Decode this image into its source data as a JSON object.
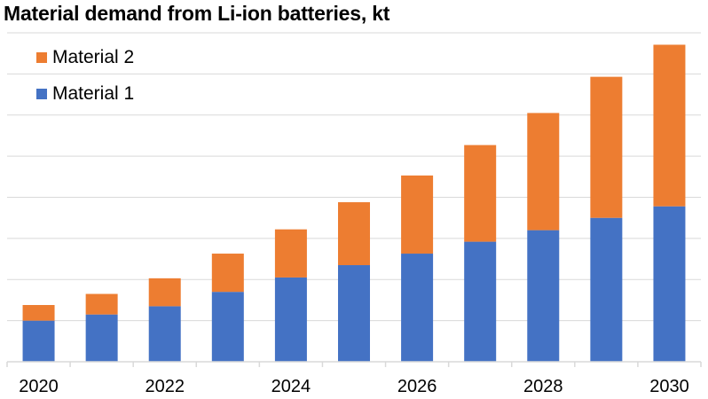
{
  "chart_data": {
    "type": "bar",
    "stacked": true,
    "title": "Material demand from Li-ion batteries, kt",
    "xlabel": "",
    "ylabel": "",
    "categories": [
      "2020",
      "2021",
      "2022",
      "2023",
      "2024",
      "2025",
      "2026",
      "2027",
      "2028",
      "2029",
      "2030"
    ],
    "x_tick_labels": [
      "2020",
      "2022",
      "2024",
      "2026",
      "2028",
      "2030"
    ],
    "series": [
      {
        "name": "Material 1",
        "color": "#4472C4",
        "values": [
          1.0,
          1.15,
          1.35,
          1.7,
          2.05,
          2.35,
          2.63,
          2.92,
          3.2,
          3.5,
          3.78
        ]
      },
      {
        "name": "Material 2",
        "color": "#ED7D31",
        "values": [
          0.38,
          0.5,
          0.68,
          0.93,
          1.17,
          1.53,
          1.9,
          2.35,
          2.85,
          3.43,
          3.93
        ]
      }
    ],
    "ylim": [
      0,
      8
    ],
    "y_gridlines": [
      1,
      2,
      3,
      4,
      5,
      6,
      7,
      8
    ],
    "grid": true,
    "legend_position": "top-left",
    "legend_order": [
      "Material 2",
      "Material 1"
    ]
  }
}
